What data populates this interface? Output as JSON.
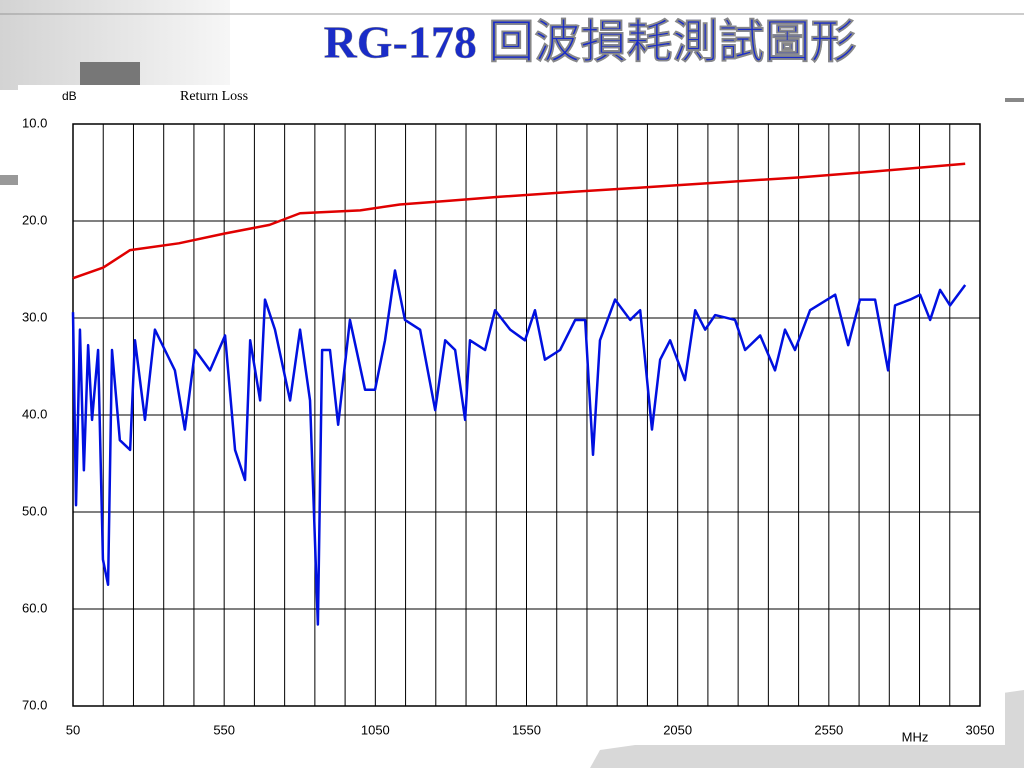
{
  "chart_data": {
    "type": "line",
    "title": "RG-178 回波損耗測試圖形",
    "subtitle": "Return Loss",
    "y_label": "dB",
    "x_label": "MHz",
    "xlim": [
      50,
      3050
    ],
    "ylim": [
      10,
      70
    ],
    "y_inverted": true,
    "grid": true,
    "xticks": [
      50,
      {
        "value": 150,
        "label": null
      },
      {
        "value": 250,
        "label": null
      },
      {
        "value": 350,
        "label": null
      },
      {
        "value": 450,
        "label": null
      },
      550,
      {
        "value": 650,
        "label": null
      },
      {
        "value": 750,
        "label": null
      },
      {
        "value": 850,
        "label": null
      },
      {
        "value": 950,
        "label": null
      },
      1050,
      {
        "value": 1150,
        "label": null
      },
      {
        "value": 1250,
        "label": null
      },
      {
        "value": 1350,
        "label": null
      },
      {
        "value": 1450,
        "label": null
      },
      1550,
      {
        "value": 1650,
        "label": null
      },
      {
        "value": 1750,
        "label": null
      },
      {
        "value": 1850,
        "label": null
      },
      {
        "value": 1950,
        "label": null
      },
      2050,
      {
        "value": 2150,
        "label": null
      },
      {
        "value": 2250,
        "label": null
      },
      {
        "value": 2350,
        "label": null
      },
      {
        "value": 2450,
        "label": null
      },
      2550,
      {
        "value": 2650,
        "label": null
      },
      {
        "value": 2750,
        "label": null
      },
      {
        "value": 2850,
        "label": null
      },
      {
        "value": 2950,
        "label": null
      },
      3050
    ],
    "yticks": [
      {
        "value": 10,
        "label": "10.0"
      },
      {
        "value": 20,
        "label": "20.0"
      },
      {
        "value": 30,
        "label": "30.0"
      },
      {
        "value": 40,
        "label": "40.0"
      },
      {
        "value": 50,
        "label": "50.0"
      },
      {
        "value": 60,
        "label": "60.0"
      },
      {
        "value": 70,
        "label": "70.0"
      }
    ],
    "series": [
      {
        "color": "#e00000",
        "x": [
          50,
          150,
          239,
          400,
          550,
          700,
          801,
          1000,
          1131,
          1300,
          1462,
          1700,
          1958,
          2200,
          2454,
          2700,
          3001
        ],
        "values": [
          25.9,
          24.8,
          23.0,
          22.3,
          21.3,
          20.4,
          19.2,
          18.9,
          18.3,
          17.9,
          17.5,
          17.0,
          16.5,
          16.0,
          15.5,
          14.9,
          14.1
        ]
      },
      {
        "color": "#0010e0",
        "x": [
          50,
          60,
          73,
          86,
          100,
          113,
          133,
          149,
          166,
          179,
          205,
          239,
          255,
          288,
          321,
          354,
          387,
          420,
          454,
          503,
          553,
          586,
          619,
          636,
          669,
          685,
          718,
          768,
          801,
          834,
          860,
          874,
          900,
          927,
          966,
          1016,
          1049,
          1082,
          1115,
          1148,
          1198,
          1248,
          1281,
          1314,
          1347,
          1363,
          1413,
          1446,
          1496,
          1545,
          1578,
          1611,
          1661,
          1711,
          1744,
          1770,
          1793,
          1843,
          1893,
          1926,
          1965,
          1992,
          2025,
          2074,
          2108,
          2141,
          2174,
          2240,
          2273,
          2323,
          2372,
          2405,
          2438,
          2488,
          2571,
          2614,
          2653,
          2703,
          2746,
          2769,
          2819,
          2852,
          2885,
          2918,
          2951,
          3001
        ],
        "values": [
          29.4,
          49.3,
          31.2,
          45.7,
          32.8,
          40.5,
          33.3,
          54.9,
          57.5,
          33.3,
          42.6,
          43.6,
          32.3,
          40.5,
          31.2,
          33.3,
          35.4,
          41.5,
          33.3,
          35.4,
          31.8,
          43.6,
          46.7,
          32.3,
          38.5,
          28.1,
          31.2,
          38.5,
          31.2,
          38.5,
          61.6,
          33.3,
          33.3,
          41.0,
          30.2,
          37.4,
          37.4,
          32.3,
          25.1,
          30.2,
          31.2,
          39.5,
          32.3,
          33.3,
          40.5,
          32.3,
          33.3,
          29.2,
          31.2,
          32.3,
          29.2,
          34.3,
          33.3,
          30.2,
          30.2,
          44.1,
          32.3,
          28.1,
          30.2,
          29.2,
          41.5,
          34.3,
          32.3,
          36.4,
          29.2,
          31.2,
          29.7,
          30.2,
          33.3,
          31.8,
          35.4,
          31.2,
          33.3,
          29.2,
          27.6,
          32.8,
          28.1,
          28.1,
          35.4,
          28.7,
          28.1,
          27.6,
          30.2,
          27.1,
          28.7,
          26.6
        ]
      }
    ]
  }
}
